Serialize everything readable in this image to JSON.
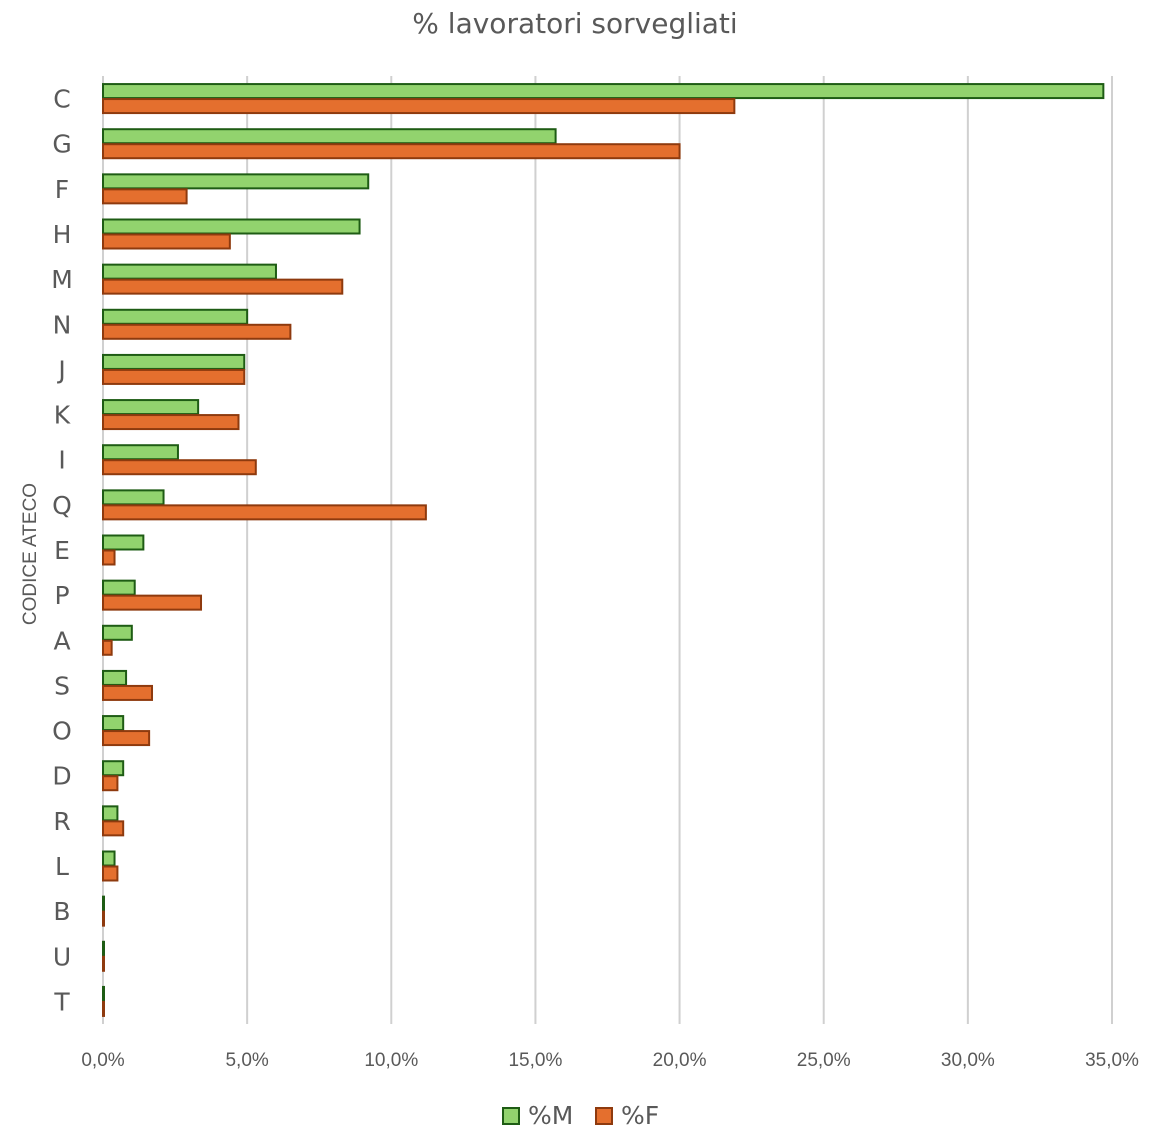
{
  "chart_data": {
    "type": "bar",
    "orientation": "horizontal",
    "title": "% lavoratori sorvegliati",
    "ylabel": "CODICE ATECO",
    "xlabel": "",
    "categories": [
      "C",
      "G",
      "F",
      "H",
      "M",
      "N",
      "J",
      "K",
      "I",
      "Q",
      "E",
      "P",
      "A",
      "S",
      "O",
      "D",
      "R",
      "L",
      "B",
      "U",
      "T"
    ],
    "series": [
      {
        "name": "%M",
        "color": "#92d36e",
        "border": "#1e5c14",
        "values": [
          34.7,
          15.7,
          9.2,
          8.9,
          6.0,
          5.0,
          4.9,
          3.3,
          2.6,
          2.1,
          1.4,
          1.1,
          1.0,
          0.8,
          0.7,
          0.7,
          0.5,
          0.4,
          0.03,
          0.02,
          0.01
        ]
      },
      {
        "name": "%F",
        "color": "#e46f2e",
        "border": "#8e3a0e",
        "values": [
          21.9,
          20.0,
          2.9,
          4.4,
          8.3,
          6.5,
          4.9,
          4.7,
          5.3,
          11.2,
          0.4,
          3.4,
          0.3,
          1.7,
          1.6,
          0.5,
          0.7,
          0.5,
          0.03,
          0.02,
          0.01
        ]
      }
    ],
    "xlim": [
      0,
      35
    ],
    "xticks": [
      0,
      5,
      10,
      15,
      20,
      25,
      30,
      35
    ],
    "xtick_labels": [
      "0,0%",
      "5,0%",
      "10,0%",
      "15,0%",
      "20,0%",
      "25,0%",
      "30,0%",
      "35,0%"
    ],
    "grid": "vertical",
    "legend": "bottom"
  }
}
